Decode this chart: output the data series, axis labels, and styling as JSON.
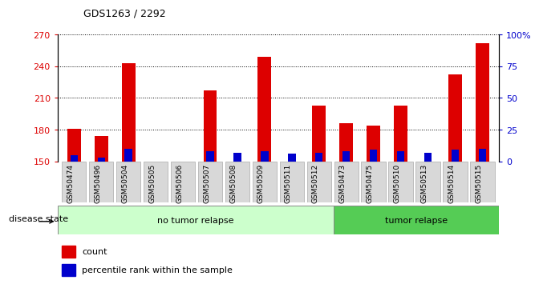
{
  "title": "GDS1263 / 2292",
  "categories": [
    "GSM50474",
    "GSM50496",
    "GSM50504",
    "GSM50505",
    "GSM50506",
    "GSM50507",
    "GSM50508",
    "GSM50509",
    "GSM50511",
    "GSM50512",
    "GSM50473",
    "GSM50475",
    "GSM50510",
    "GSM50513",
    "GSM50514",
    "GSM50515"
  ],
  "count_values": [
    181,
    174,
    243,
    150,
    150,
    217,
    150,
    249,
    150,
    203,
    186,
    184,
    203,
    150,
    232,
    262
  ],
  "percentile_values": [
    5,
    3,
    10,
    0,
    0,
    8,
    7,
    8,
    6,
    7,
    8,
    9,
    8,
    7,
    9,
    10
  ],
  "ylim_left": [
    150,
    270
  ],
  "ylim_right": [
    0,
    100
  ],
  "yticks_left": [
    150,
    180,
    210,
    240,
    270
  ],
  "yticks_right": [
    0,
    25,
    50,
    75,
    100
  ],
  "bar_color_red": "#dd0000",
  "bar_color_blue": "#0000cc",
  "group1_label": "no tumor relapse",
  "group2_label": "tumor relapse",
  "group1_count": 10,
  "group2_count": 6,
  "group1_color": "#ccffcc",
  "group2_color": "#55cc55",
  "disease_state_label": "disease state",
  "legend_count": "count",
  "legend_percentile": "percentile rank within the sample",
  "bar_width": 0.5,
  "base_value": 150,
  "xtick_bg": "#d8d8d8",
  "xtick_border": "#aaaaaa"
}
